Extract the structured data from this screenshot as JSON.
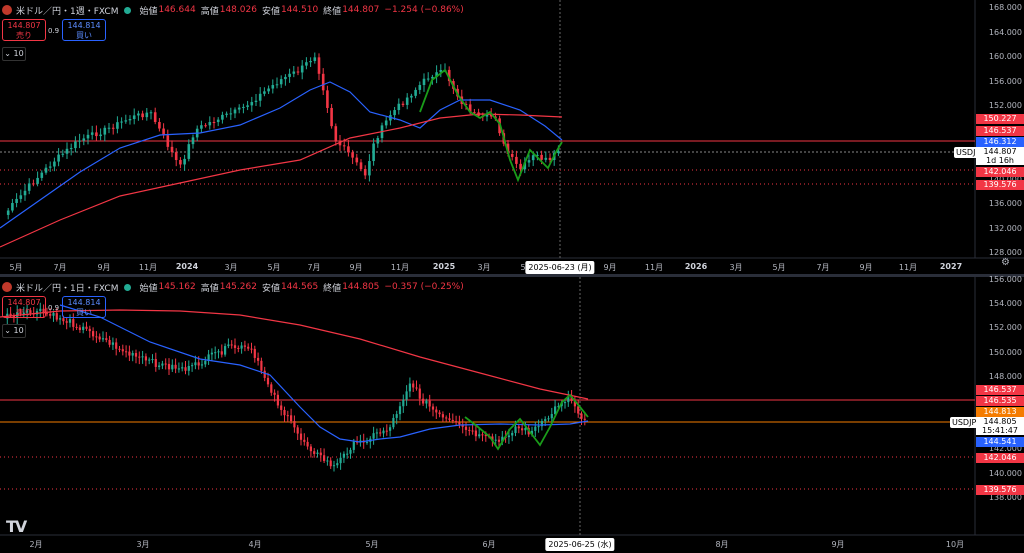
{
  "top": {
    "title": "米ドル／円・1週・FXCM",
    "ohlc": {
      "o_label": "始値",
      "o": "146.644",
      "h_label": "高値",
      "h": "148.026",
      "l_label": "安値",
      "l": "144.510",
      "c_label": "終値",
      "c": "144.807",
      "chg": "−1.254 (−0.86%)"
    },
    "sell_price": "144.807",
    "sell_label": "売り",
    "buy_price": "144.814",
    "buy_label": "買い",
    "spread": "0.9",
    "indicator_count": "10",
    "y_labels": [
      "168.000",
      "164.000",
      "160.000",
      "156.000",
      "152.000",
      "148.000",
      "144.000",
      "140.000",
      "136.000",
      "132.000",
      "128.000"
    ],
    "x_labels": [
      "5月",
      "7月",
      "9月",
      "11月",
      "2024",
      "3月",
      "5月",
      "7月",
      "9月",
      "11月",
      "2025",
      "3月",
      "5月",
      "9月",
      "11月",
      "2026",
      "3月",
      "5月",
      "7月",
      "9月",
      "11月",
      "2027"
    ],
    "bold_x": [
      "2024",
      "2025",
      "2026",
      "2027"
    ],
    "crosshair_date": "2025-06-23 (月)",
    "tags": [
      {
        "value": "150.227",
        "color": "#f23645"
      },
      {
        "value": "146.537",
        "color": "#f23645"
      },
      {
        "value": "146.312",
        "color": "#2962ff"
      },
      {
        "value": "142.046",
        "color": "#f23645"
      },
      {
        "value": "139.576",
        "color": "#f23645"
      }
    ],
    "symbol": "USDJPY",
    "price": "144.807",
    "countdown": "1d 16h"
  },
  "bottom": {
    "title": "米ドル／円・1日・FXCM",
    "ohlc": {
      "o_label": "始値",
      "o": "145.162",
      "h_label": "高値",
      "h": "145.262",
      "l_label": "安値",
      "l": "144.565",
      "c_label": "終値",
      "c": "144.805",
      "chg": "−0.357 (−0.25%)"
    },
    "sell_price": "144.807",
    "sell_label": "売り",
    "buy_price": "144.814",
    "buy_label": "買い",
    "spread": "0.9",
    "indicator_count": "10",
    "y_labels": [
      "156.000",
      "154.000",
      "152.000",
      "150.000",
      "148.000",
      "146.000",
      "144.000",
      "142.000",
      "140.000",
      "138.000"
    ],
    "x_labels": [
      "2月",
      "3月",
      "4月",
      "5月",
      "6月",
      "8月",
      "9月",
      "10月"
    ],
    "crosshair_date": "2025-06-25 (水)",
    "tags": [
      {
        "value": "146.537",
        "color": "#f23645"
      },
      {
        "value": "146.535",
        "color": "#f23645"
      },
      {
        "value": "144.813",
        "color": "#f57c00"
      },
      {
        "value": "144.541",
        "color": "#2962ff"
      },
      {
        "value": "142.046",
        "color": "#f23645"
      },
      {
        "value": "139.576",
        "color": "#f23645"
      }
    ],
    "symbol": "USDJPY",
    "price": "144.805",
    "countdown": "15:41:47"
  },
  "colors": {
    "up": "#22ab94",
    "down": "#f23645",
    "ma_fast": "#2962ff",
    "ma_slow": "#f23645",
    "pattern": "#1a9c1a"
  },
  "logo": "TV"
}
